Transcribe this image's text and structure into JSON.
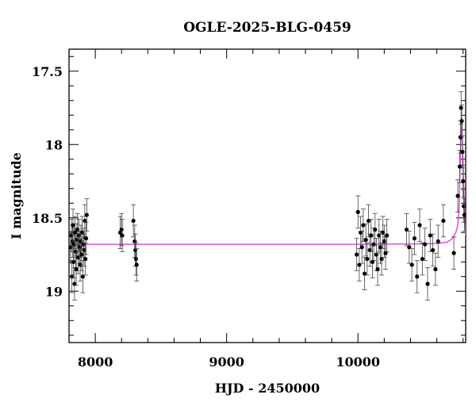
{
  "chart_data": {
    "type": "scatter",
    "title": "OGLE-2025-BLG-0459",
    "xlabel": "HJD - 2450000",
    "ylabel": "I magnitude",
    "xlim": [
      7800,
      10820
    ],
    "ylim": [
      19.35,
      17.35
    ],
    "y_inverted": true,
    "grid": false,
    "x_ticks_major": [
      8000,
      9000,
      10000
    ],
    "x_tick_labels": [
      "8000",
      "9000",
      "10000"
    ],
    "y_ticks_major": [
      17.5,
      18,
      18.5,
      19
    ],
    "y_tick_labels": [
      "17.5",
      "18",
      "18.5",
      "19"
    ],
    "colors": {
      "points": "#000000",
      "model": "#e040e0",
      "frame": "#000000"
    },
    "series": [
      {
        "kind": "observations",
        "x": [
          7812,
          7818,
          7822,
          7826,
          7830,
          7834,
          7838,
          7842,
          7846,
          7850,
          7855,
          7860,
          7865,
          7870,
          7875,
          7880,
          7885,
          7890,
          7895,
          7900,
          7905,
          7910,
          7915,
          7920,
          7925,
          7930,
          7935,
          8190,
          8200,
          8205,
          8290,
          8300,
          8305,
          8310,
          8315,
          9990,
          10000,
          10010,
          10020,
          10030,
          10040,
          10050,
          10060,
          10070,
          10080,
          10090,
          10100,
          10110,
          10120,
          10130,
          10140,
          10150,
          10160,
          10170,
          10180,
          10190,
          10200,
          10210,
          10220,
          10370,
          10390,
          10410,
          10430,
          10450,
          10470,
          10490,
          10510,
          10530,
          10550,
          10570,
          10590,
          10610,
          10650,
          10730,
          10760,
          10775,
          10780,
          10785,
          10790,
          10795,
          10800,
          10805,
          10810
        ],
        "y": [
          18.7,
          18.62,
          18.9,
          18.66,
          18.55,
          18.8,
          18.68,
          18.95,
          18.6,
          18.73,
          18.85,
          18.65,
          18.58,
          18.77,
          18.62,
          18.7,
          18.82,
          18.66,
          18.75,
          18.6,
          18.9,
          18.68,
          18.72,
          18.52,
          18.78,
          18.64,
          18.48,
          18.6,
          18.58,
          18.62,
          18.52,
          18.66,
          18.72,
          18.78,
          18.82,
          18.75,
          18.46,
          18.82,
          18.6,
          18.7,
          18.55,
          18.88,
          18.65,
          18.78,
          18.52,
          18.72,
          18.62,
          18.8,
          18.68,
          18.58,
          18.75,
          18.85,
          18.62,
          18.7,
          18.78,
          18.6,
          18.66,
          18.74,
          18.62,
          18.58,
          18.7,
          18.82,
          18.64,
          18.9,
          18.55,
          18.78,
          18.68,
          18.95,
          18.62,
          18.72,
          18.85,
          18.66,
          18.52,
          18.74,
          18.35,
          18.15,
          17.95,
          17.75,
          17.84,
          18.05,
          18.25,
          18.42,
          18.48
        ],
        "yerr": 0.11
      },
      {
        "kind": "model",
        "x": [
          7800,
          8000,
          8500,
          9000,
          9500,
          10000,
          10400,
          10600,
          10680,
          10720,
          10745,
          10760,
          10770,
          10780,
          10790,
          10800,
          10810,
          10820
        ],
        "y": [
          18.68,
          18.68,
          18.68,
          18.68,
          18.68,
          18.68,
          18.678,
          18.675,
          18.665,
          18.64,
          18.6,
          18.55,
          18.42,
          18.05,
          17.82,
          18.1,
          18.48,
          18.62
        ]
      }
    ]
  }
}
